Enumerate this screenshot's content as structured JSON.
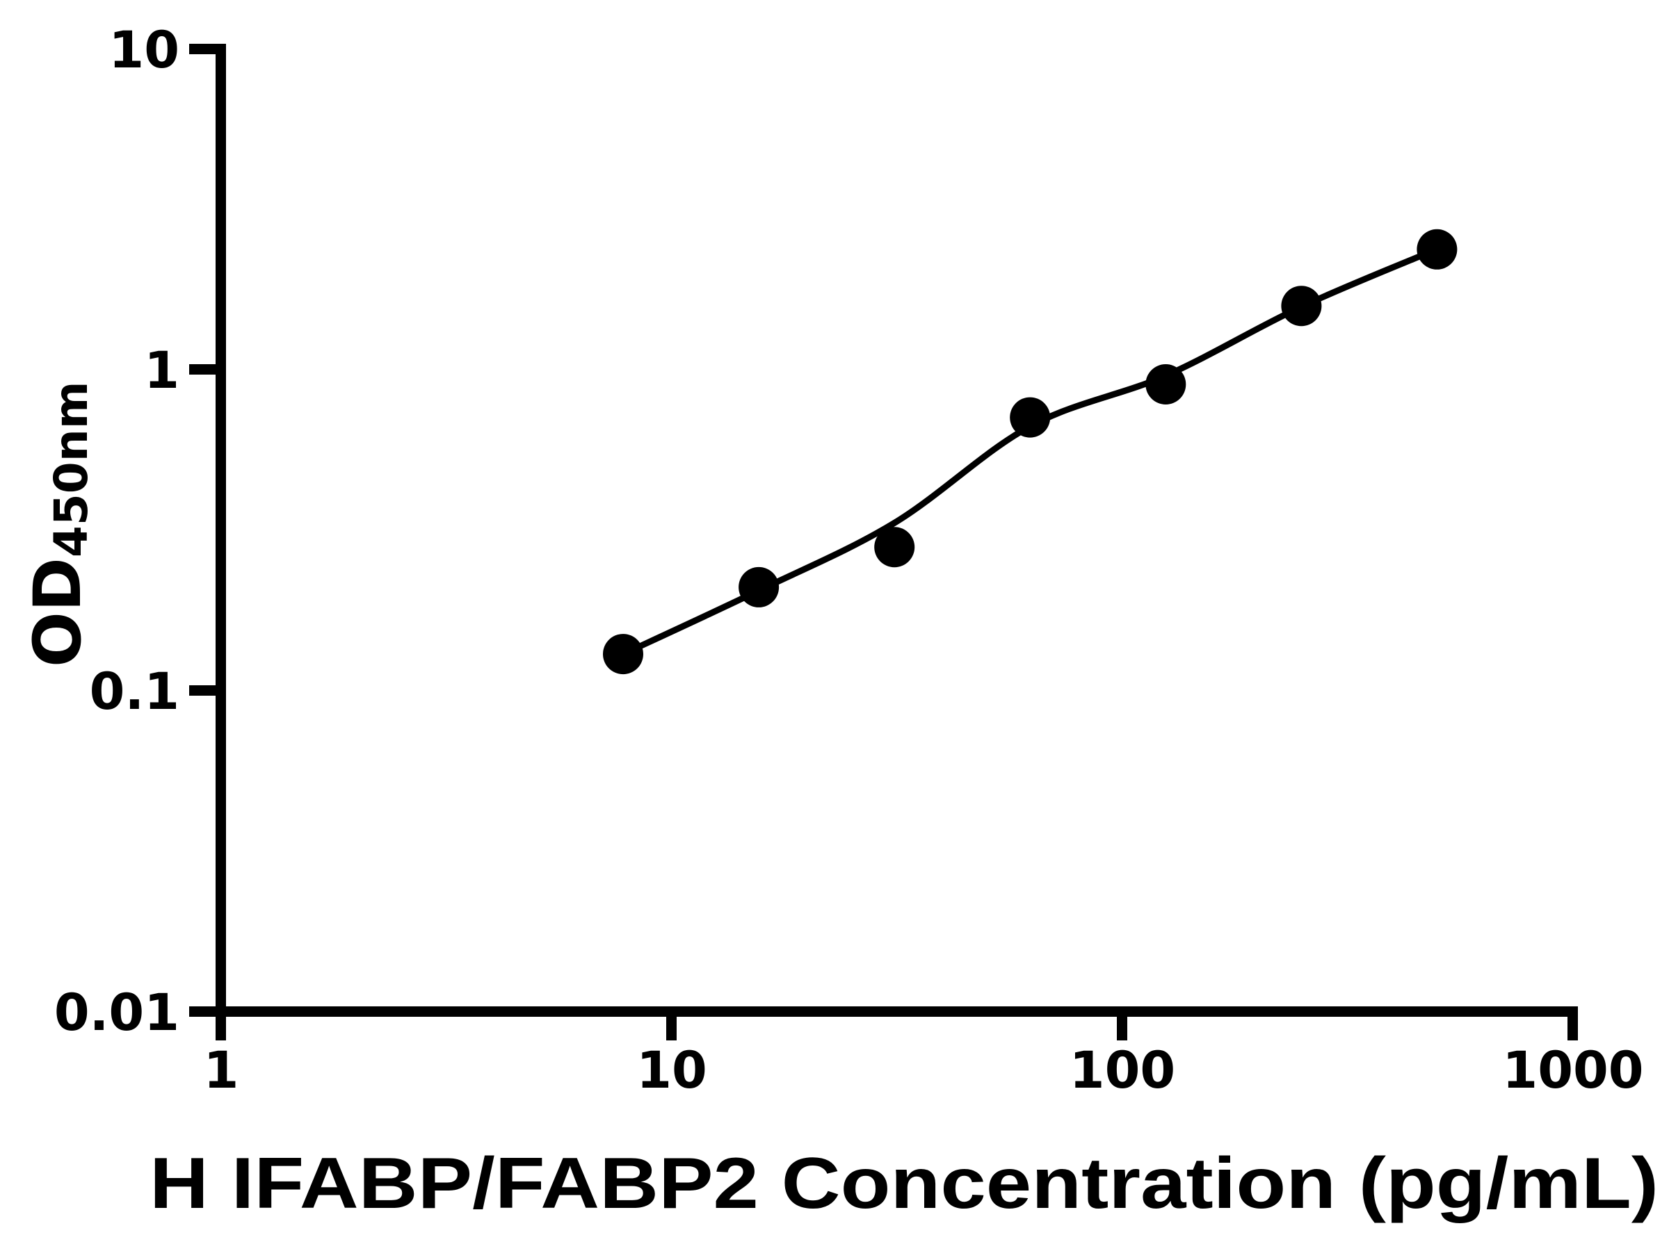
{
  "chart_data": {
    "type": "scatter",
    "title": "",
    "xlabel": "H IFABP/FABP2 Concentration (pg/mL)",
    "ylabel_main": "OD",
    "ylabel_sub": "450nm",
    "x_scale": "log",
    "y_scale": "log",
    "xlim": [
      1,
      1000
    ],
    "ylim": [
      0.01,
      10
    ],
    "grid": false,
    "legend": null,
    "x_tick_values": [
      1,
      10,
      100,
      1000
    ],
    "x_tick_labels": [
      "1",
      "10",
      "100",
      "1000"
    ],
    "y_tick_values": [
      10,
      1,
      0.1,
      0.01
    ],
    "y_tick_labels": [
      "10",
      "1",
      "0.1",
      "0.01"
    ],
    "series": [
      {
        "name": "standard-curve-points",
        "marker": "filled-circle",
        "color": "#000000",
        "x": [
          7.8125,
          15.625,
          31.25,
          62.5,
          125,
          250,
          500
        ],
        "od": [
          0.13,
          0.21,
          0.28,
          0.71,
          0.9,
          1.58,
          2.37
        ]
      }
    ],
    "trend_line": {
      "name": "fitted-curve",
      "color": "#000000",
      "x": [
        7.8125,
        15.625,
        31.25,
        62.5,
        125,
        250,
        500
      ],
      "od": [
        0.13,
        0.205,
        0.333,
        0.666,
        0.958,
        1.571,
        2.374
      ]
    },
    "marker_color": "#000000",
    "line_color": "#000000",
    "axis_color": "#000000",
    "background_color": "#ffffff"
  }
}
